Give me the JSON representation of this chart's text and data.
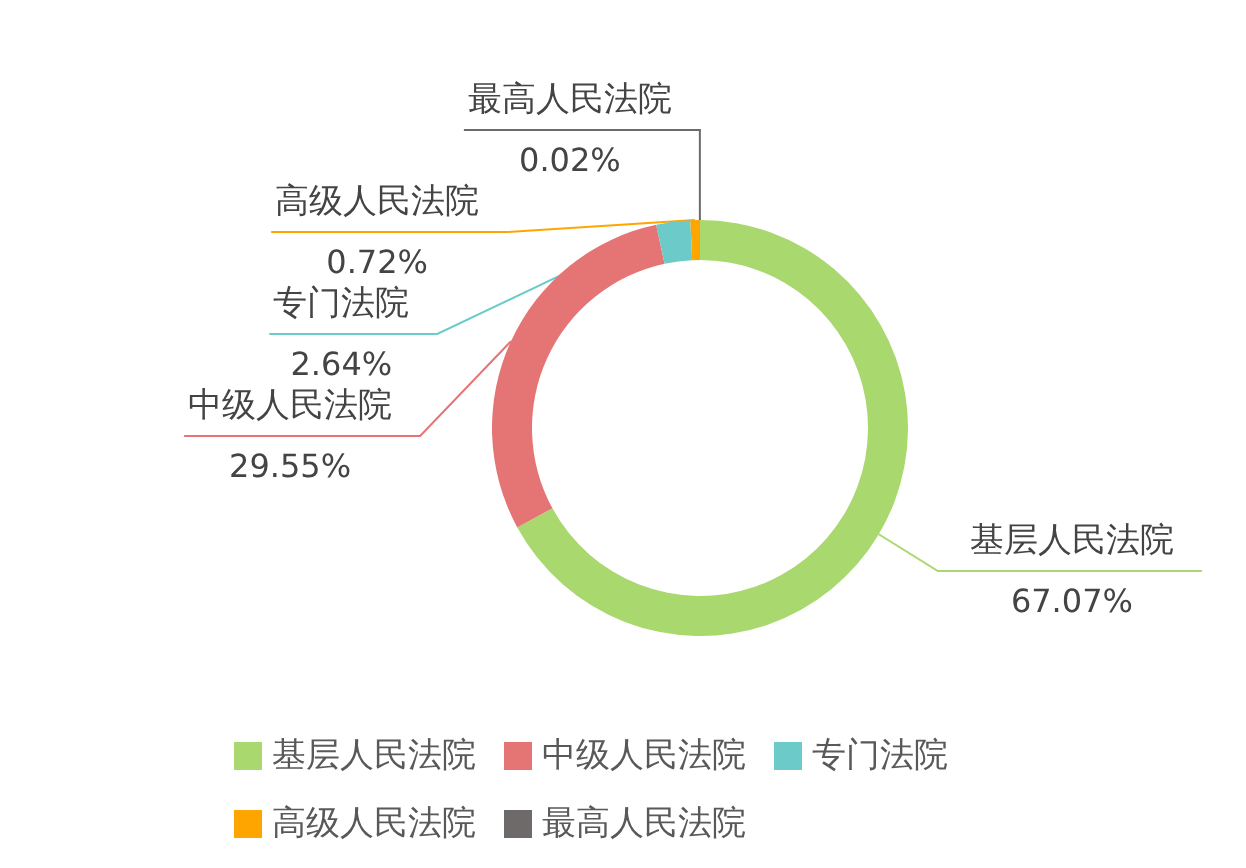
{
  "chart_data": {
    "type": "donut",
    "categories": [
      "基层人民法院",
      "中级人民法院",
      "专门法院",
      "高级人民法院",
      "最高人民法院"
    ],
    "values": [
      67.07,
      29.55,
      2.64,
      0.72,
      0.02
    ],
    "value_labels": [
      "67.07%",
      "29.55%",
      "2.64%",
      "0.72%",
      "0.02%"
    ],
    "colors": [
      "#a9d86e",
      "#e57575",
      "#6ccac9",
      "#ffa500",
      "#6e6a6a"
    ],
    "legend": "bottom"
  }
}
